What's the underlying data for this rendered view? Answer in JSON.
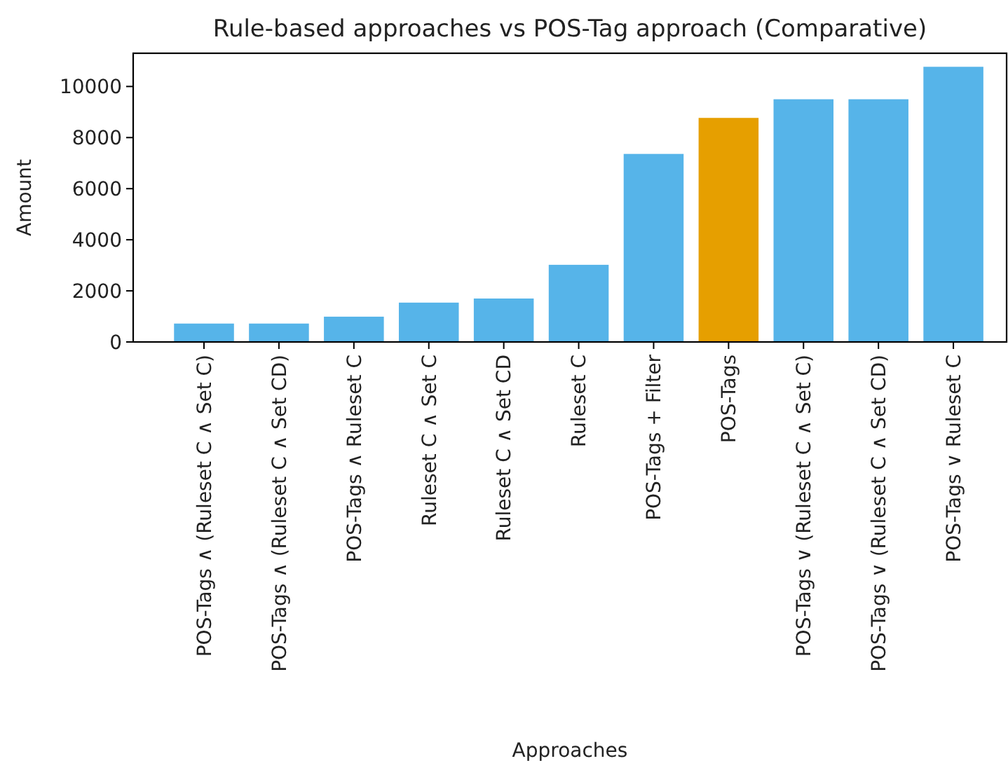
{
  "chart_data": {
    "type": "bar",
    "title": "Rule-based approaches vs POS-Tag approach (Comparative)",
    "xlabel": "Approaches",
    "ylabel": "Amount",
    "categories": [
      "POS-Tags ∧ (Ruleset C ∧ Set C)",
      "POS-Tags ∧ (Ruleset C ∧ Set CD)",
      "POS-Tags ∧ Ruleset C",
      "Ruleset C ∧ Set C",
      "Ruleset C ∧ Set CD",
      "Ruleset C",
      "POS-Tags + Filter",
      "POS-Tags",
      "POS-Tags ∨ (Ruleset C ∧ Set C)",
      "POS-Tags ∨ (Ruleset C ∧ Set CD)",
      "POS-Tags ∨ Ruleset C"
    ],
    "values": [
      720,
      720,
      990,
      1540,
      1700,
      3020,
      7360,
      8770,
      9500,
      9500,
      10770
    ],
    "colors": [
      "#56b4e9",
      "#56b4e9",
      "#56b4e9",
      "#56b4e9",
      "#56b4e9",
      "#56b4e9",
      "#56b4e9",
      "#e69f00",
      "#56b4e9",
      "#56b4e9",
      "#56b4e9"
    ],
    "ylim": [
      0,
      11300
    ],
    "yticks": [
      0,
      2000,
      4000,
      6000,
      8000,
      10000
    ],
    "grid": false
  }
}
